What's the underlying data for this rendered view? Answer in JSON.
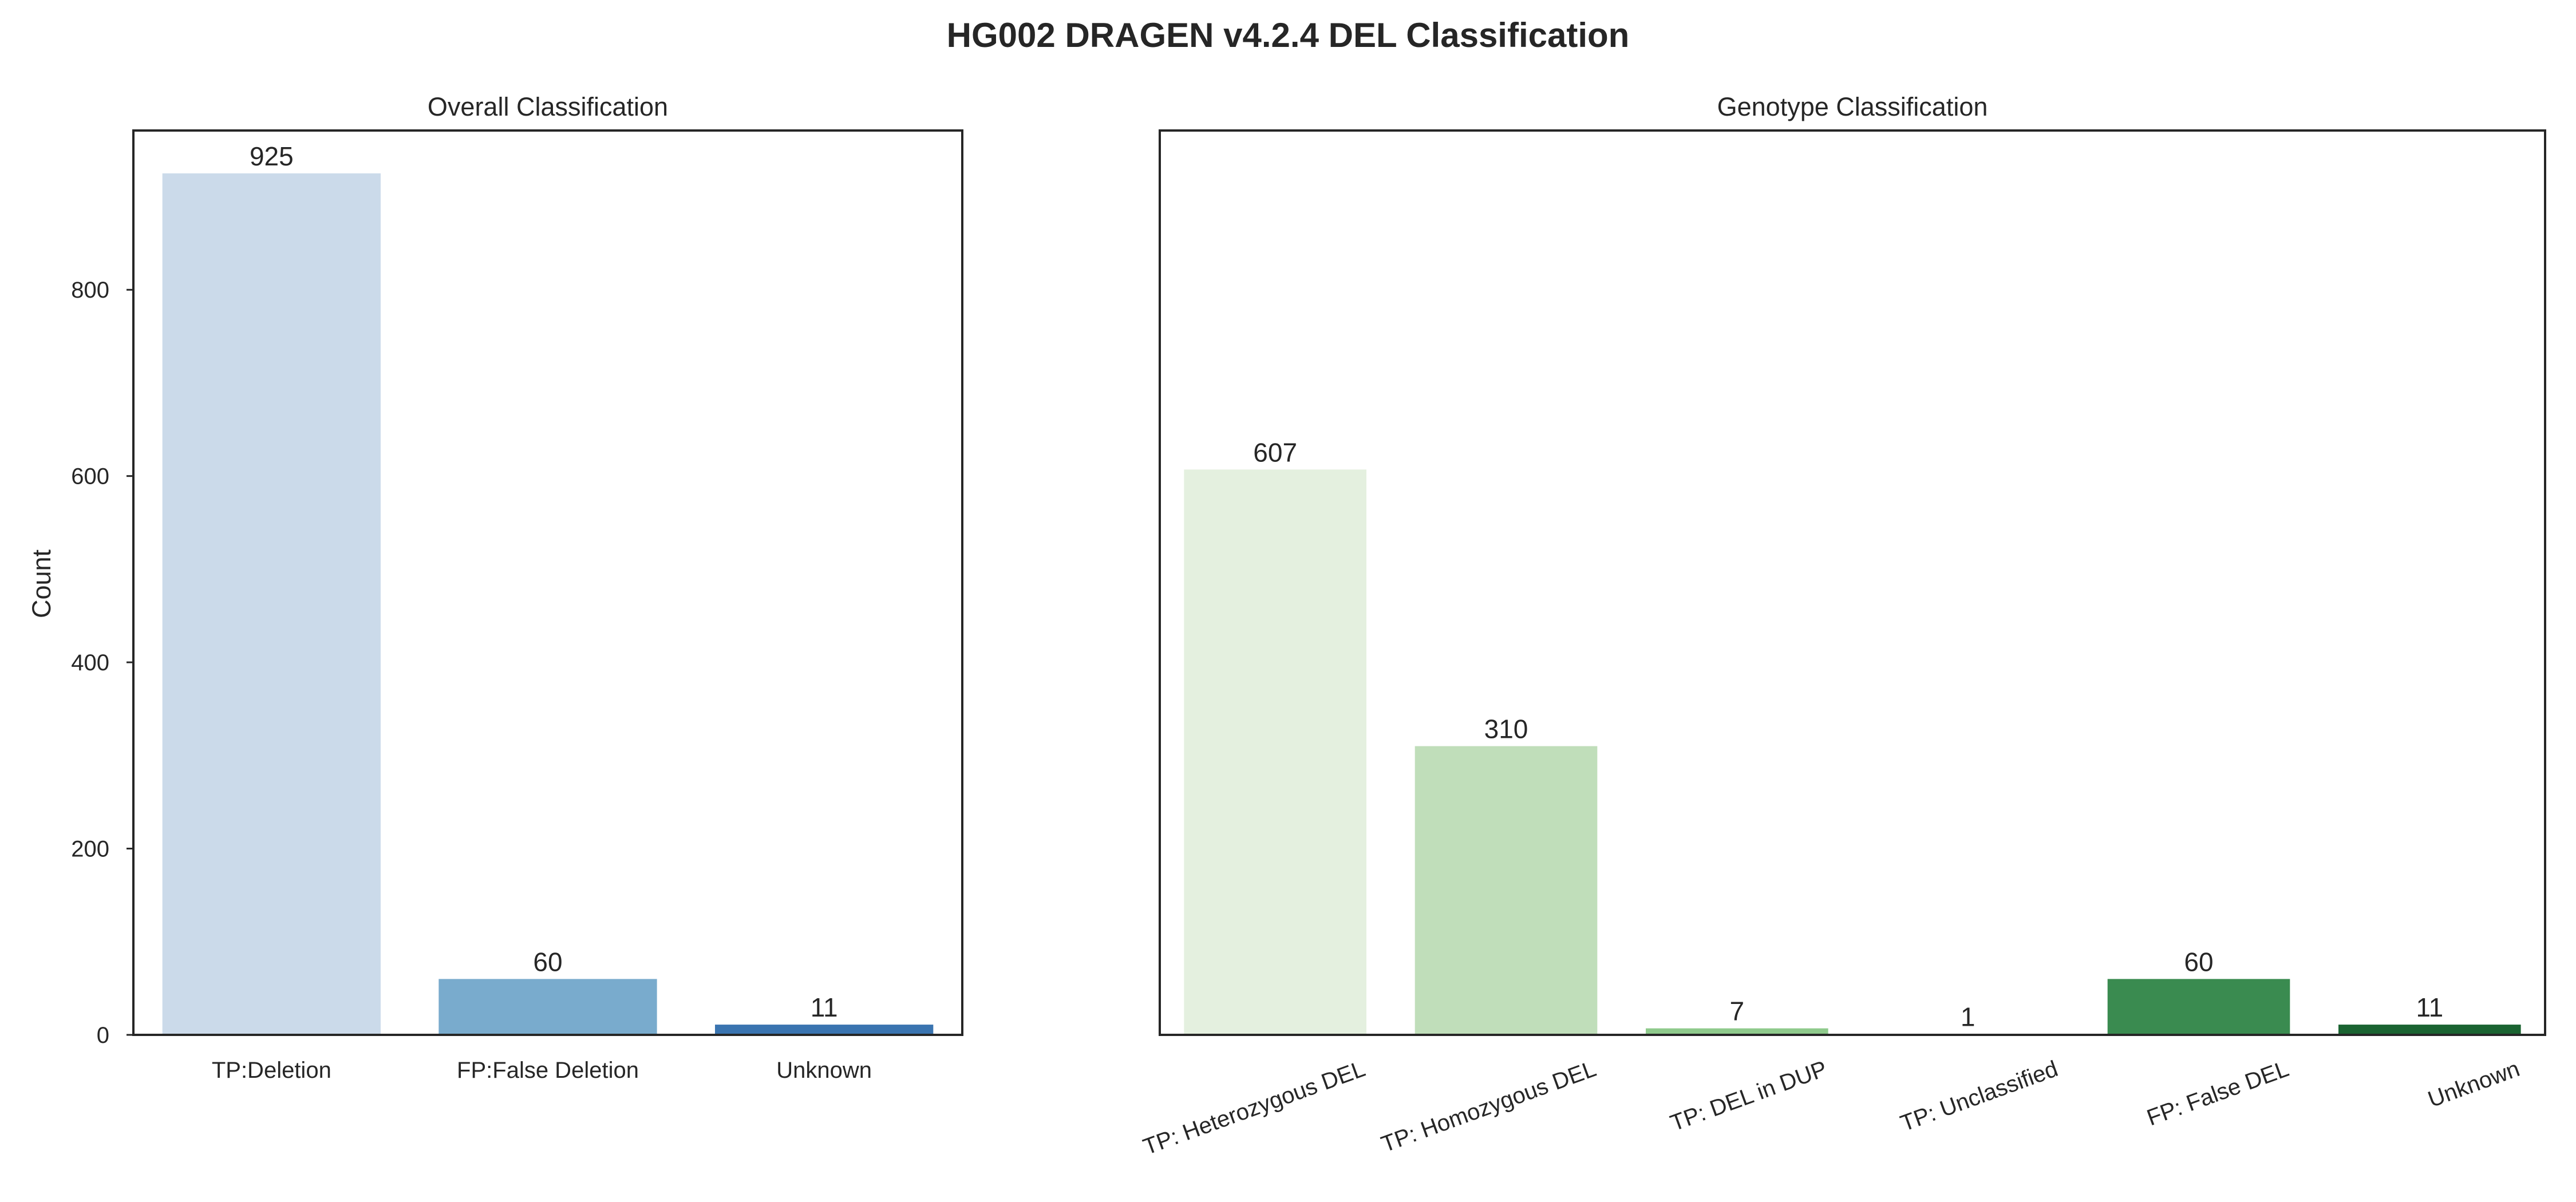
{
  "title": "HG002 DRAGEN v4.2.4 DEL Classification",
  "chart_data": [
    {
      "type": "bar",
      "title": "Overall Classification",
      "xlabel": "",
      "ylabel": "Count",
      "ylim": [
        0,
        971
      ],
      "yticks": [
        0,
        200,
        400,
        600,
        800
      ],
      "grid": false,
      "categories": [
        "TP:Deletion",
        "FP:False Deletion",
        "Unknown"
      ],
      "values": [
        925,
        60,
        11
      ],
      "data_labels": [
        "925",
        "60",
        "11"
      ],
      "colors": [
        "#cbdaea",
        "#79abcd",
        "#3a74b0"
      ]
    },
    {
      "type": "bar",
      "title": "Genotype Classification",
      "xlabel": "",
      "ylabel": "",
      "ylim": [
        0,
        971
      ],
      "grid": false,
      "categories": [
        "TP: Heterozygous DEL",
        "TP: Homozygous DEL",
        "TP: DEL in DUP",
        "TP: Unclassified",
        "FP: False DEL",
        "Unknown"
      ],
      "values": [
        607,
        310,
        7,
        1,
        60,
        11
      ],
      "data_labels": [
        "607",
        "310",
        "7",
        "1",
        "60",
        "11"
      ],
      "colors": [
        "#e4f0df",
        "#c0deba",
        "#8fca8c",
        "#5aab64",
        "#3a8b50",
        "#1a6331"
      ]
    }
  ]
}
